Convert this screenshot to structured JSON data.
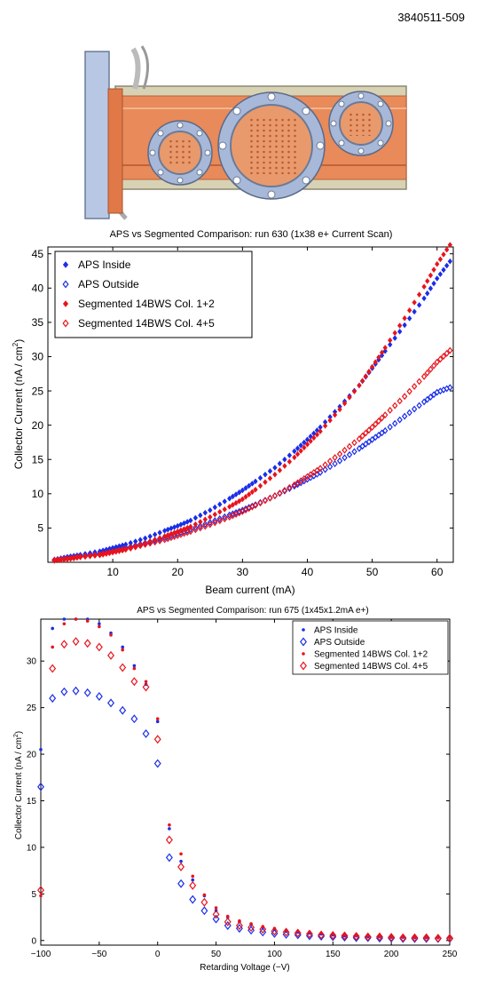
{
  "figure_id": "3840511-509",
  "colors": {
    "blue": "#1a2ee8",
    "red": "#e8141c",
    "chamber_orange": "#e88a5a",
    "flange_blue": "#a8b8d8",
    "outer_pipe": "#c8c4a8"
  },
  "chart_data": [
    {
      "type": "scatter",
      "title": "APS vs Segmented Comparison: run 630 (1x38 e+ Current Scan)",
      "xlabel": "Beam current (mA)",
      "ylabel": "Collector Current (nA / cm",
      "ylabel_sup": "2",
      "ylabel_close": ")",
      "xlim": [
        0,
        62.5
      ],
      "ylim": [
        0,
        46
      ],
      "xticks": [
        10,
        20,
        30,
        40,
        50,
        60
      ],
      "yticks": [
        5,
        10,
        15,
        20,
        25,
        30,
        35,
        40,
        45
      ],
      "grid": false,
      "legend_position": "top-left",
      "series": [
        {
          "name": "APS Inside",
          "marker": "filled-diamond",
          "color": "#1a2ee8",
          "x": [
            1,
            3,
            5,
            8,
            10,
            12,
            15,
            18,
            20,
            22,
            25,
            28,
            30,
            32,
            35,
            38,
            40,
            42,
            45,
            48,
            50,
            52,
            55,
            58,
            60,
            62
          ],
          "y": [
            0.4,
            0.8,
            1.1,
            1.6,
            2.1,
            2.6,
            3.5,
            4.6,
            5.3,
            6.1,
            7.6,
            9.3,
            10.5,
            11.8,
            13.8,
            16.2,
            17.9,
            19.7,
            22.7,
            25.8,
            28.3,
            30.8,
            34.6,
            38.5,
            41.4,
            43.9
          ]
        },
        {
          "name": "APS Outside",
          "marker": "open-diamond",
          "color": "#1a2ee8",
          "x": [
            1,
            3,
            5,
            8,
            10,
            12,
            15,
            18,
            20,
            22,
            25,
            28,
            30,
            32,
            35,
            38,
            40,
            42,
            45,
            48,
            50,
            52,
            55,
            58,
            60,
            62
          ],
          "y": [
            0.3,
            0.6,
            0.9,
            1.3,
            1.7,
            2.1,
            2.8,
            3.6,
            4.2,
            4.8,
            5.8,
            6.9,
            7.6,
            8.4,
            9.7,
            11.1,
            12.1,
            13.1,
            14.8,
            16.6,
            17.9,
            19.2,
            21.3,
            23.4,
            24.8,
            25.5
          ]
        },
        {
          "name": "Segmented 14BWS Col. 1+2",
          "marker": "filled-diamond",
          "color": "#e8141c",
          "x": [
            1,
            3,
            5,
            8,
            10,
            12,
            15,
            18,
            20,
            22,
            25,
            28,
            30,
            32,
            35,
            38,
            40,
            42,
            45,
            48,
            50,
            52,
            55,
            58,
            60,
            62
          ],
          "y": [
            0.3,
            0.5,
            0.8,
            1.2,
            1.6,
            2.0,
            2.8,
            3.8,
            4.5,
            5.2,
            6.6,
            8.1,
            9.2,
            10.6,
            12.8,
            15.3,
            17.2,
            19.1,
            22.3,
            25.8,
            28.5,
            31.3,
            35.6,
            40.2,
            43.5,
            46.3
          ]
        },
        {
          "name": "Segmented 14BWS Col. 4+5",
          "marker": "open-diamond",
          "color": "#e8141c",
          "x": [
            1,
            3,
            5,
            8,
            10,
            12,
            15,
            18,
            20,
            22,
            25,
            28,
            30,
            32,
            35,
            38,
            40,
            42,
            45,
            48,
            50,
            52,
            55,
            58,
            60,
            62
          ],
          "y": [
            0.3,
            0.5,
            0.8,
            1.1,
            1.5,
            1.9,
            2.6,
            3.3,
            3.9,
            4.5,
            5.5,
            6.6,
            7.4,
            8.3,
            9.7,
            11.3,
            12.5,
            13.7,
            15.8,
            18.0,
            19.7,
            21.5,
            24.2,
            27.1,
            29.2,
            30.9
          ]
        }
      ]
    },
    {
      "type": "scatter",
      "title": "APS vs Segmented Comparison: run 675 (1x45x1.2mA e+)",
      "xlabel": "Retarding Voltage (−V)",
      "ylabel": "Collector Current (nA / cm",
      "ylabel_sup": "2",
      "ylabel_close": ")",
      "xlim": [
        -100,
        250
      ],
      "ylim": [
        -0.5,
        34.5
      ],
      "xticks": [
        -100,
        -50,
        0,
        50,
        100,
        150,
        200,
        250
      ],
      "yticks": [
        0,
        5,
        10,
        15,
        20,
        25,
        30
      ],
      "grid": false,
      "legend_position": "top-right",
      "series": [
        {
          "name": "APS Inside",
          "marker": "dot",
          "color": "#1a2ee8",
          "x": [
            -100,
            -90,
            -80,
            -70,
            -60,
            -50,
            -40,
            -30,
            -20,
            -10,
            0,
            10,
            20,
            30,
            40,
            50,
            60,
            70,
            80,
            90,
            100,
            110,
            120,
            130,
            140,
            150,
            160,
            170,
            180,
            190,
            200,
            210,
            220,
            230,
            240,
            250
          ],
          "y": [
            20.5,
            33.5,
            34.5,
            34.5,
            34.5,
            34.0,
            33.0,
            31.5,
            29.5,
            27.5,
            23.5,
            12.0,
            8.5,
            6.5,
            4.8,
            3.2,
            2.5,
            2.0,
            1.7,
            1.4,
            1.2,
            1.0,
            0.9,
            0.8,
            0.7,
            0.6,
            0.5,
            0.5,
            0.4,
            0.4,
            0.35,
            0.35,
            0.3,
            0.3,
            0.3,
            0.3
          ]
        },
        {
          "name": "APS Outside",
          "marker": "open-diamond",
          "color": "#1a2ee8",
          "x": [
            -100,
            -90,
            -80,
            -70,
            -60,
            -50,
            -40,
            -30,
            -20,
            -10,
            0,
            10,
            20,
            30,
            40,
            50,
            60,
            70,
            80,
            90,
            100,
            110,
            120,
            130,
            140,
            150,
            160,
            170,
            180,
            190,
            200,
            210,
            220,
            230,
            240,
            250
          ],
          "y": [
            16.5,
            26.0,
            26.7,
            26.8,
            26.6,
            26.2,
            25.5,
            24.7,
            23.8,
            22.2,
            19.0,
            8.9,
            6.1,
            4.4,
            3.2,
            2.3,
            1.6,
            1.3,
            1.1,
            0.9,
            0.75,
            0.65,
            0.6,
            0.5,
            0.45,
            0.4,
            0.35,
            0.3,
            0.3,
            0.25,
            0.25,
            0.2,
            0.2,
            0.2,
            0.2,
            0.2
          ]
        },
        {
          "name": "Segmented 14BWS Col. 1+2",
          "marker": "dot",
          "color": "#e8141c",
          "x": [
            -100,
            -90,
            -80,
            -70,
            -60,
            -50,
            -40,
            -30,
            -20,
            -10,
            0,
            10,
            20,
            30,
            40,
            50,
            60,
            70,
            80,
            90,
            100,
            110,
            120,
            130,
            140,
            150,
            160,
            170,
            180,
            190,
            200,
            210,
            220,
            230,
            240,
            250
          ],
          "y": [
            4.8,
            31.5,
            34.0,
            34.5,
            34.3,
            33.7,
            32.8,
            31.2,
            29.2,
            27.8,
            23.8,
            12.4,
            9.3,
            6.9,
            4.9,
            3.5,
            2.6,
            2.1,
            1.8,
            1.5,
            1.3,
            1.1,
            1.0,
            0.9,
            0.8,
            0.7,
            0.6,
            0.55,
            0.5,
            0.45,
            0.4,
            0.4,
            0.35,
            0.35,
            0.3,
            0.3
          ]
        },
        {
          "name": "Segmented 14BWS Col. 4+5",
          "marker": "open-diamond",
          "color": "#e8141c",
          "x": [
            -100,
            -90,
            -80,
            -70,
            -60,
            -50,
            -40,
            -30,
            -20,
            -10,
            0,
            10,
            20,
            30,
            40,
            50,
            60,
            70,
            80,
            90,
            100,
            110,
            120,
            130,
            140,
            150,
            160,
            170,
            180,
            190,
            200,
            210,
            220,
            230,
            240,
            250
          ],
          "y": [
            5.4,
            29.2,
            31.8,
            32.1,
            31.9,
            31.5,
            30.6,
            29.3,
            27.8,
            27.2,
            21.6,
            10.8,
            7.9,
            5.9,
            4.1,
            2.8,
            2.0,
            1.6,
            1.4,
            1.2,
            1.0,
            0.9,
            0.8,
            0.7,
            0.6,
            0.55,
            0.5,
            0.45,
            0.4,
            0.4,
            0.35,
            0.3,
            0.3,
            0.3,
            0.25,
            0.25
          ]
        }
      ]
    }
  ]
}
